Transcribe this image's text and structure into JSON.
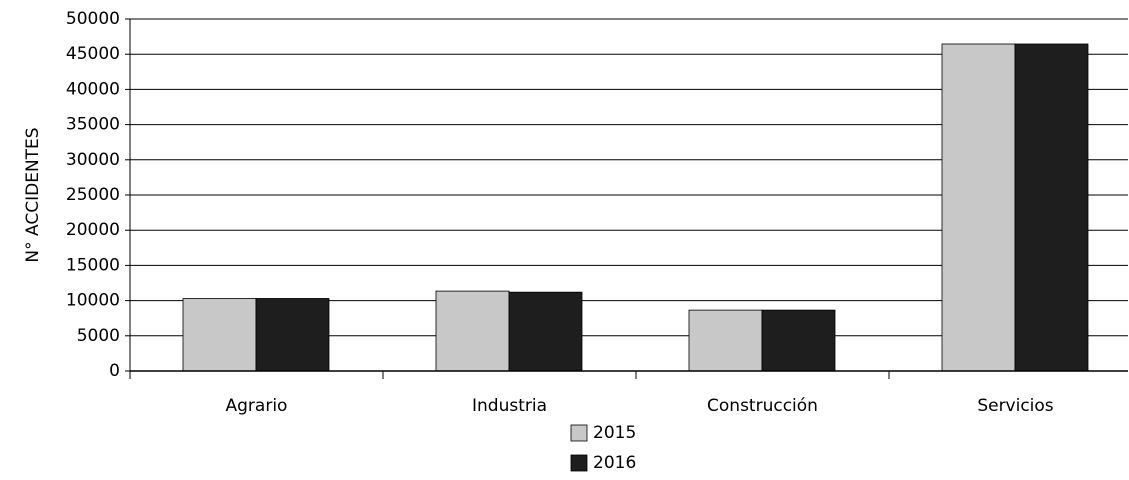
{
  "chart_data": {
    "type": "bar",
    "y_label": "N° ACCIDENTES",
    "categories": [
      "Agrario",
      "Industria",
      "Construcción",
      "Servicios"
    ],
    "series": [
      {
        "name": "2015",
        "color": "#c8c8c8",
        "values": [
          10300,
          11350,
          8650,
          46450
        ]
      },
      {
        "name": "2016",
        "color": "#1e1e1e",
        "values": [
          10300,
          11200,
          8650,
          46450
        ]
      }
    ],
    "ylim": [
      0,
      50000
    ],
    "yticks": [
      0,
      5000,
      10000,
      15000,
      20000,
      25000,
      30000,
      35000,
      40000,
      45000,
      50000
    ],
    "grid": true
  }
}
